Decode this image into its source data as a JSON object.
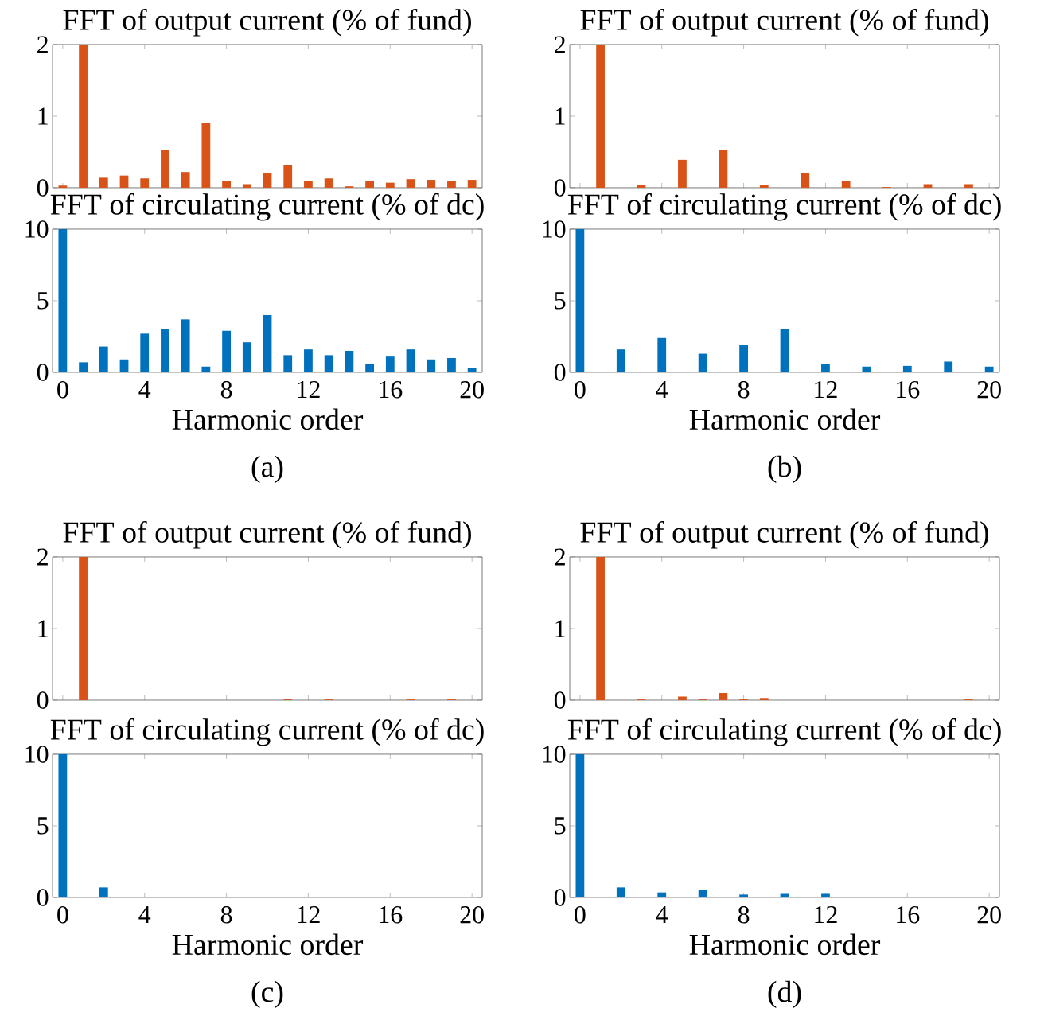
{
  "chart_data": [
    {
      "type": "bar",
      "title": "FFT of output current (% of fund)",
      "x": [
        0,
        1,
        2,
        3,
        4,
        5,
        6,
        7,
        8,
        9,
        10,
        11,
        12,
        13,
        14,
        15,
        16,
        17,
        18,
        19,
        20
      ],
      "color": "#d95319",
      "xlim": [
        -0.5,
        20.5
      ],
      "xticks": [
        0,
        4,
        8,
        12,
        16,
        20
      ],
      "ylim": [
        0,
        2
      ],
      "yticks": [
        0,
        1,
        2
      ],
      "tick_labels": "y",
      "values": [
        0.03,
        2,
        0.14,
        0.17,
        0.13,
        0.53,
        0.22,
        0.9,
        0.09,
        0.05,
        0.21,
        0.32,
        0.09,
        0.13,
        0.02,
        0.1,
        0.07,
        0.12,
        0.11,
        0.09,
        0.11
      ]
    },
    {
      "type": "bar",
      "title": "FFT of output current (% of fund)",
      "x": [
        0,
        1,
        2,
        3,
        4,
        5,
        6,
        7,
        8,
        9,
        10,
        11,
        12,
        13,
        14,
        15,
        16,
        17,
        18,
        19,
        20
      ],
      "color": "#d95319",
      "xlim": [
        -0.5,
        20.5
      ],
      "xticks": [
        0,
        4,
        8,
        12,
        16,
        20
      ],
      "ylim": [
        0,
        2
      ],
      "yticks": [
        0,
        1,
        2
      ],
      "tick_labels": "y",
      "values": [
        0,
        2,
        0,
        0.04,
        0,
        0.39,
        0,
        0.53,
        0,
        0.04,
        0,
        0.2,
        0,
        0.1,
        0,
        0.01,
        0,
        0.05,
        0,
        0.05,
        0
      ]
    },
    {
      "type": "bar",
      "title": "FFT of circulating current (% of dc)",
      "xlabel": "Harmonic order",
      "annotations": [
        "(a)"
      ],
      "x": [
        0,
        1,
        2,
        3,
        4,
        5,
        6,
        7,
        8,
        9,
        10,
        11,
        12,
        13,
        14,
        15,
        16,
        17,
        18,
        19,
        20
      ],
      "color": "#0072bd",
      "xlim": [
        -0.5,
        20.5
      ],
      "xticks": [
        0,
        4,
        8,
        12,
        16,
        20
      ],
      "ylim": [
        0,
        10
      ],
      "yticks": [
        0,
        5,
        10
      ],
      "values": [
        10,
        0.7,
        1.8,
        0.9,
        2.7,
        3.0,
        3.7,
        0.4,
        2.9,
        2.1,
        4.0,
        1.2,
        1.6,
        1.2,
        1.5,
        0.6,
        1.1,
        1.6,
        0.9,
        1.0,
        0.3
      ]
    },
    {
      "type": "bar",
      "title": "FFT of circulating current (% of dc)",
      "xlabel": "Harmonic order",
      "annotations": [
        "(b)"
      ],
      "x": [
        0,
        1,
        2,
        3,
        4,
        5,
        6,
        7,
        8,
        9,
        10,
        11,
        12,
        13,
        14,
        15,
        16,
        17,
        18,
        19,
        20
      ],
      "color": "#0072bd",
      "xlim": [
        -0.5,
        20.5
      ],
      "xticks": [
        0,
        4,
        8,
        12,
        16,
        20
      ],
      "ylim": [
        0,
        10
      ],
      "yticks": [
        0,
        5,
        10
      ],
      "values": [
        10,
        0,
        1.6,
        0,
        2.4,
        0,
        1.3,
        0,
        1.9,
        0,
        3.0,
        0,
        0.6,
        0,
        0.4,
        0,
        0.45,
        0,
        0.75,
        0,
        0.4
      ]
    },
    {
      "type": "bar",
      "title": "FFT of output current (% of fund)",
      "x": [
        0,
        1,
        2,
        3,
        4,
        5,
        6,
        7,
        8,
        9,
        10,
        11,
        12,
        13,
        14,
        15,
        16,
        17,
        18,
        19,
        20
      ],
      "color": "#d95319",
      "xlim": [
        -0.5,
        20.5
      ],
      "xticks": [
        0,
        4,
        8,
        12,
        16,
        20
      ],
      "ylim": [
        0,
        2
      ],
      "yticks": [
        0,
        1,
        2
      ],
      "tick_labels": "y",
      "values": [
        0,
        2,
        0,
        0,
        0,
        0,
        0,
        0,
        0,
        0,
        0,
        0.01,
        0,
        0.01,
        0,
        0,
        0,
        0.01,
        0,
        0.01,
        0
      ]
    },
    {
      "type": "bar",
      "title": "FFT of output current (% of fund)",
      "x": [
        0,
        1,
        2,
        3,
        4,
        5,
        6,
        7,
        8,
        9,
        10,
        11,
        12,
        13,
        14,
        15,
        16,
        17,
        18,
        19,
        20
      ],
      "color": "#d95319",
      "xlim": [
        -0.5,
        20.5
      ],
      "xticks": [
        0,
        4,
        8,
        12,
        16,
        20
      ],
      "ylim": [
        0,
        2
      ],
      "yticks": [
        0,
        1,
        2
      ],
      "tick_labels": "y",
      "values": [
        0,
        2,
        0,
        0.01,
        0,
        0.05,
        0.01,
        0.1,
        0.01,
        0.03,
        0,
        0,
        0,
        0,
        0,
        0,
        0,
        0,
        0,
        0.01,
        0
      ]
    },
    {
      "type": "bar",
      "title": "FFT of circulating current (% of dc)",
      "xlabel": "Harmonic order",
      "annotations": [
        "(c)"
      ],
      "x": [
        0,
        1,
        2,
        3,
        4,
        5,
        6,
        7,
        8,
        9,
        10,
        11,
        12,
        13,
        14,
        15,
        16,
        17,
        18,
        19,
        20
      ],
      "color": "#0072bd",
      "xlim": [
        -0.5,
        20.5
      ],
      "xticks": [
        0,
        4,
        8,
        12,
        16,
        20
      ],
      "ylim": [
        0,
        10
      ],
      "yticks": [
        0,
        5,
        10
      ],
      "values": [
        10,
        0,
        0.7,
        0,
        0.05,
        0,
        0,
        0,
        0,
        0,
        0,
        0,
        0,
        0,
        0,
        0,
        0,
        0,
        0,
        0,
        0
      ]
    },
    {
      "type": "bar",
      "title": "FFT of circulating current (% of dc)",
      "xlabel": "Harmonic order",
      "annotations": [
        "(d)"
      ],
      "x": [
        0,
        1,
        2,
        3,
        4,
        5,
        6,
        7,
        8,
        9,
        10,
        11,
        12,
        13,
        14,
        15,
        16,
        17,
        18,
        19,
        20
      ],
      "color": "#0072bd",
      "xlim": [
        -0.5,
        20.5
      ],
      "xticks": [
        0,
        4,
        8,
        12,
        16,
        20
      ],
      "ylim": [
        0,
        10
      ],
      "yticks": [
        0,
        5,
        10
      ],
      "values": [
        10,
        0,
        0.7,
        0,
        0.35,
        0,
        0.55,
        0,
        0.2,
        0,
        0.25,
        0,
        0.25,
        0,
        0,
        0,
        0,
        0,
        0,
        0,
        0
      ]
    }
  ]
}
